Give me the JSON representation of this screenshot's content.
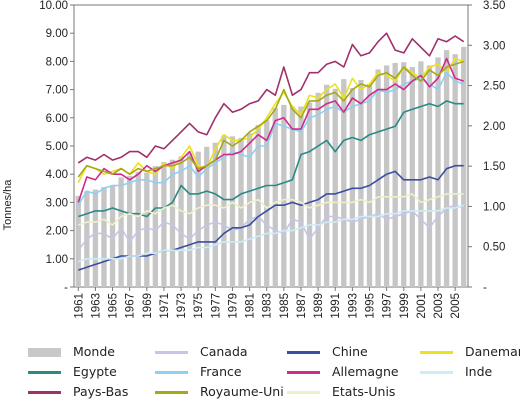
{
  "chart_data": {
    "type": "bar+line",
    "y_left_label": "Tonnes/ha",
    "y_left_ticks": [
      "-",
      "1.00",
      "2.00",
      "3.00",
      "4.00",
      "5.00",
      "6.00",
      "7.00",
      "8.00",
      "9.00",
      "10.00"
    ],
    "y_right_ticks": [
      "-",
      "0.50",
      "1.00",
      "1.50",
      "2.00",
      "2.50",
      "3.00",
      "3.50"
    ],
    "ylim_left": [
      0,
      10
    ],
    "ylim_right": [
      0,
      3.5
    ],
    "x_tick_labels": [
      "1961",
      "1963",
      "1965",
      "1967",
      "1969",
      "1971",
      "1973",
      "1975",
      "1977",
      "1979",
      "1981",
      "1983",
      "1985",
      "1987",
      "1989",
      "1991",
      "1993",
      "1995",
      "1997",
      "1999",
      "2001",
      "2003",
      "2005"
    ],
    "years": [
      1961,
      1962,
      1963,
      1964,
      1965,
      1966,
      1967,
      1968,
      1969,
      1970,
      1971,
      1972,
      1973,
      1974,
      1975,
      1976,
      1977,
      1978,
      1979,
      1980,
      1981,
      1982,
      1983,
      1984,
      1985,
      1986,
      1987,
      1988,
      1989,
      1990,
      1991,
      1992,
      1993,
      1994,
      1995,
      1996,
      1997,
      1998,
      1999,
      2000,
      2001,
      2002,
      2003,
      2004,
      2005,
      2006
    ],
    "bars": {
      "name": "Monde",
      "axis": "right",
      "values": [
        1.13,
        1.19,
        1.21,
        1.24,
        1.26,
        1.36,
        1.38,
        1.43,
        1.42,
        1.5,
        1.55,
        1.58,
        1.62,
        1.66,
        1.68,
        1.74,
        1.79,
        1.88,
        1.87,
        1.85,
        1.91,
        2.01,
        2.07,
        2.22,
        2.26,
        2.24,
        2.24,
        2.29,
        2.41,
        2.51,
        2.46,
        2.58,
        2.47,
        2.57,
        2.52,
        2.7,
        2.75,
        2.78,
        2.79,
        2.73,
        2.8,
        2.75,
        2.85,
        2.94,
        2.89,
        2.98
      ]
    },
    "series": [
      {
        "name": "Canada",
        "color": "#c8c4e8",
        "axis": "left",
        "values": [
          1.3,
          1.7,
          1.9,
          1.9,
          1.7,
          2.1,
          1.6,
          2.0,
          2.1,
          2.0,
          2.3,
          2.2,
          1.9,
          1.7,
          2.0,
          2.2,
          2.3,
          2.2,
          2.0,
          2.1,
          2.4,
          2.5,
          2.2,
          2.0,
          1.9,
          2.4,
          2.3,
          1.7,
          2.1,
          2.5,
          2.5,
          2.4,
          2.3,
          2.4,
          2.5,
          2.6,
          2.4,
          2.5,
          2.6,
          2.7,
          2.4,
          2.1,
          2.5,
          2.8,
          2.9,
          2.8
        ]
      },
      {
        "name": "Chine",
        "color": "#3a4fa0",
        "axis": "left",
        "values": [
          0.6,
          0.7,
          0.8,
          0.9,
          1.0,
          1.1,
          1.1,
          1.1,
          1.1,
          1.2,
          1.3,
          1.3,
          1.4,
          1.5,
          1.6,
          1.6,
          1.6,
          1.9,
          2.1,
          2.1,
          2.2,
          2.5,
          2.7,
          2.9,
          2.9,
          3.0,
          2.9,
          3.0,
          3.1,
          3.3,
          3.3,
          3.4,
          3.5,
          3.5,
          3.6,
          3.8,
          4.0,
          4.1,
          3.8,
          3.8,
          3.8,
          3.9,
          3.8,
          4.2,
          4.3,
          4.3
        ]
      },
      {
        "name": "Danemark",
        "color": "#ece020",
        "axis": "left",
        "values": [
          3.7,
          4.3,
          4.2,
          4.0,
          4.1,
          4.2,
          4.0,
          4.4,
          4.1,
          4.0,
          4.4,
          4.2,
          4.6,
          5.0,
          4.3,
          4.2,
          4.9,
          5.4,
          5.2,
          5.2,
          5.3,
          5.6,
          6.0,
          6.5,
          6.9,
          6.4,
          6.1,
          6.8,
          6.7,
          7.0,
          7.2,
          6.7,
          7.4,
          7.0,
          7.2,
          7.6,
          7.5,
          7.3,
          7.8,
          7.6,
          7.4,
          7.8,
          7.9,
          7.6,
          8.1,
          8.0
        ]
      },
      {
        "name": "Egypte",
        "color": "#2a8a84",
        "axis": "left",
        "values": [
          2.5,
          2.6,
          2.7,
          2.7,
          2.8,
          2.7,
          2.6,
          2.6,
          2.5,
          2.8,
          2.8,
          3.0,
          3.6,
          3.3,
          3.3,
          3.4,
          3.3,
          3.1,
          3.1,
          3.3,
          3.4,
          3.5,
          3.6,
          3.6,
          3.7,
          3.8,
          4.7,
          4.8,
          5.0,
          5.2,
          4.8,
          5.2,
          5.3,
          5.2,
          5.4,
          5.5,
          5.6,
          5.7,
          6.2,
          6.3,
          6.4,
          6.5,
          6.4,
          6.6,
          6.5,
          6.5
        ]
      },
      {
        "name": "France",
        "color": "#8ed0f2",
        "axis": "left",
        "values": [
          2.9,
          3.4,
          3.3,
          3.5,
          3.6,
          3.6,
          3.7,
          3.8,
          3.8,
          3.7,
          3.7,
          4.0,
          4.1,
          4.3,
          3.9,
          4.2,
          4.4,
          4.6,
          4.8,
          4.7,
          4.6,
          5.0,
          5.0,
          5.8,
          5.7,
          5.6,
          5.5,
          6.0,
          6.1,
          6.3,
          6.4,
          6.2,
          6.4,
          6.5,
          6.6,
          7.0,
          6.9,
          7.0,
          7.2,
          7.3,
          7.4,
          7.2,
          7.0,
          7.6,
          7.3,
          7.2
        ]
      },
      {
        "name": "Allemagne",
        "color": "#d02a8a",
        "axis": "left",
        "values": [
          3.0,
          3.9,
          3.8,
          4.2,
          4.0,
          4.0,
          3.8,
          4.0,
          4.3,
          4.1,
          4.3,
          4.4,
          4.5,
          4.8,
          4.1,
          4.3,
          4.5,
          4.7,
          4.7,
          4.8,
          5.1,
          5.4,
          5.2,
          5.9,
          6.0,
          5.6,
          5.6,
          6.3,
          6.3,
          6.5,
          6.6,
          6.2,
          6.7,
          6.5,
          6.8,
          7.0,
          7.0,
          7.2,
          7.0,
          7.3,
          7.5,
          7.1,
          7.4,
          8.1,
          7.4,
          7.3
        ]
      },
      {
        "name": "Inde",
        "color": "#ccecf8",
        "axis": "left",
        "values": [
          0.9,
          1.0,
          1.0,
          1.0,
          1.0,
          1.0,
          1.1,
          1.1,
          1.2,
          1.2,
          1.3,
          1.3,
          1.3,
          1.3,
          1.4,
          1.4,
          1.5,
          1.6,
          1.6,
          1.6,
          1.7,
          1.8,
          1.9,
          1.9,
          2.0,
          2.0,
          2.1,
          2.2,
          2.2,
          2.3,
          2.3,
          2.4,
          2.4,
          2.5,
          2.5,
          2.5,
          2.6,
          2.6,
          2.7,
          2.7,
          2.7,
          2.7,
          2.7,
          2.8,
          2.8,
          2.9
        ]
      },
      {
        "name": "Pays-Bas",
        "color": "#a0306a",
        "axis": "left",
        "values": [
          4.4,
          4.6,
          4.5,
          4.7,
          4.5,
          4.6,
          4.8,
          4.8,
          4.6,
          5.0,
          4.9,
          5.2,
          5.5,
          5.8,
          5.5,
          5.4,
          6.0,
          6.5,
          6.2,
          6.3,
          6.5,
          6.6,
          7.0,
          6.8,
          7.8,
          6.8,
          7.0,
          7.6,
          7.6,
          7.9,
          8.0,
          7.8,
          8.6,
          8.2,
          8.3,
          8.7,
          9.0,
          8.4,
          8.3,
          8.8,
          8.5,
          8.2,
          8.8,
          8.7,
          8.9,
          8.7
        ]
      },
      {
        "name": "Royaume-Uni",
        "color": "#a6a81a",
        "axis": "left",
        "values": [
          3.9,
          4.3,
          4.2,
          4.1,
          4.0,
          4.2,
          4.0,
          4.2,
          4.1,
          4.2,
          4.3,
          4.3,
          4.4,
          4.6,
          4.2,
          4.3,
          4.5,
          5.2,
          5.0,
          5.2,
          5.5,
          5.7,
          5.9,
          6.3,
          7.0,
          6.3,
          6.0,
          6.6,
          6.6,
          6.8,
          6.9,
          6.6,
          7.0,
          7.2,
          7.1,
          7.5,
          7.6,
          7.4,
          7.8,
          7.5,
          7.3,
          7.7,
          7.5,
          7.8,
          7.9,
          8.0
        ]
      },
      {
        "name": "Etats-Unis",
        "color": "#eef0c8",
        "axis": "left",
        "values": [
          2.2,
          2.3,
          2.3,
          2.4,
          2.2,
          2.5,
          2.6,
          2.5,
          2.7,
          2.6,
          2.8,
          2.9,
          2.7,
          2.6,
          2.8,
          2.9,
          2.9,
          2.8,
          3.0,
          2.8,
          3.0,
          3.1,
          2.8,
          3.0,
          3.1,
          3.1,
          3.0,
          2.8,
          2.9,
          3.0,
          3.0,
          3.0,
          3.0,
          3.1,
          3.0,
          3.2,
          3.2,
          3.2,
          3.2,
          3.3,
          3.0,
          3.1,
          3.2,
          3.3,
          3.3,
          3.3
        ]
      }
    ]
  },
  "legend": {
    "items": [
      {
        "label": "Monde",
        "color": "#c8c8c8",
        "kind": "bar"
      },
      {
        "label": "Canada",
        "color": "#c8c4e8",
        "kind": "line"
      },
      {
        "label": "Chine",
        "color": "#3a4fa0",
        "kind": "line"
      },
      {
        "label": "Danemark",
        "color": "#ece020",
        "kind": "line"
      },
      {
        "label": "Egypte",
        "color": "#2a8a84",
        "kind": "line"
      },
      {
        "label": "France",
        "color": "#8ed0f2",
        "kind": "line"
      },
      {
        "label": "Allemagne",
        "color": "#d02a8a",
        "kind": "line"
      },
      {
        "label": "Inde",
        "color": "#ccecf8",
        "kind": "line"
      },
      {
        "label": "Pays-Bas",
        "color": "#a0306a",
        "kind": "line"
      },
      {
        "label": "Royaume-Uni",
        "color": "#a6a81a",
        "kind": "line"
      },
      {
        "label": "Etats-Unis",
        "color": "#eef0c8",
        "kind": "line"
      }
    ]
  }
}
